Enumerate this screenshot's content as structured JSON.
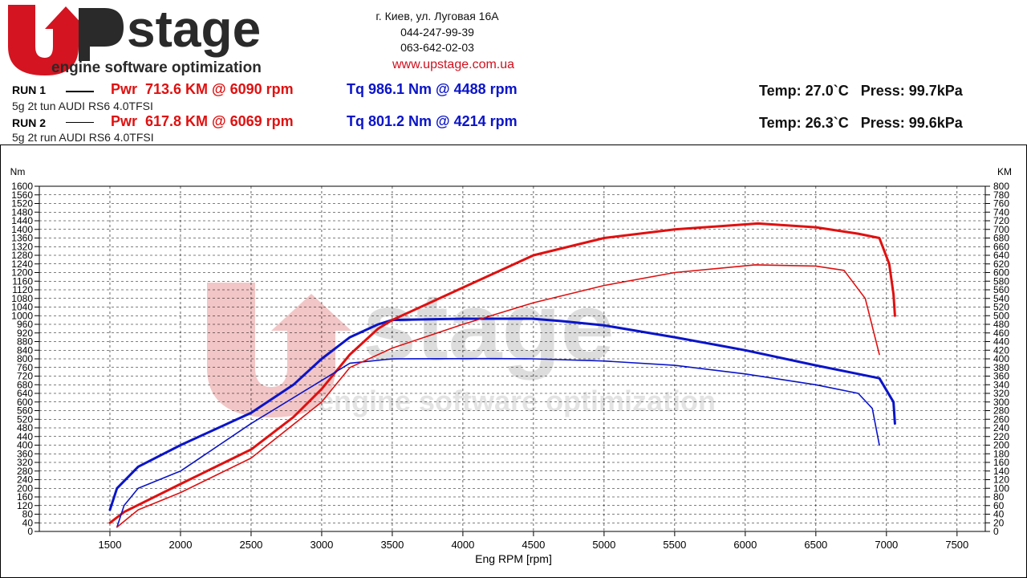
{
  "header": {
    "logo_text": "UPstage",
    "logo_tagline": "engine software optimization",
    "address": "г. Киев, ул. Луговая 16А",
    "phone1": "044-247-99-39",
    "phone2": "063-642-02-03",
    "website": "www.upstage.com.ua"
  },
  "runs": [
    {
      "label": "RUN 1",
      "pwr": "Pwr  713.6 KM @ 6090 rpm",
      "tq": "Tq 986.1 Nm @ 4488 rpm",
      "conditions": "Temp: 27.0`C   Press: 99.7kPa",
      "car": "5g 2t tun AUDI RS6 4.0TFSI"
    },
    {
      "label": "RUN 2",
      "pwr": "Pwr  617.8 KM @ 6069 rpm",
      "tq": "Tq 801.2 Nm @ 4214 rpm",
      "conditions": "Temp: 26.3`C   Press: 99.6kPa",
      "car": "5g 2t run AUDI RS6 4.0TFSI"
    }
  ],
  "colors": {
    "power": "#e01010",
    "torque": "#0a14c8",
    "watermark": "#f2c6c6"
  },
  "chart_data": {
    "type": "line",
    "xlabel": "Eng RPM [rpm]",
    "ylabel_left": "Nm",
    "ylabel_right": "KM",
    "xlim": [
      1000,
      7700
    ],
    "xticks": [
      1500,
      2000,
      2500,
      3000,
      3500,
      4000,
      4500,
      5000,
      5500,
      6000,
      6500,
      7000,
      7500
    ],
    "ylim_left": [
      0,
      1600
    ],
    "ylim_right": [
      0,
      800
    ],
    "ytick_step_left": 40,
    "ytick_step_right": 20,
    "grid": true,
    "series": [
      {
        "name": "RUN 1 Tq",
        "axis": "left",
        "color": "#0a14c8",
        "width": 3,
        "points": [
          [
            1500,
            100
          ],
          [
            1550,
            200
          ],
          [
            1700,
            300
          ],
          [
            2000,
            400
          ],
          [
            2500,
            550
          ],
          [
            2800,
            680
          ],
          [
            3000,
            800
          ],
          [
            3200,
            900
          ],
          [
            3400,
            960
          ],
          [
            3500,
            980
          ],
          [
            4000,
            986
          ],
          [
            4488,
            986
          ],
          [
            4700,
            975
          ],
          [
            5000,
            955
          ],
          [
            5500,
            900
          ],
          [
            6000,
            840
          ],
          [
            6500,
            770
          ],
          [
            6800,
            730
          ],
          [
            6950,
            710
          ],
          [
            7050,
            600
          ],
          [
            7060,
            500
          ]
        ]
      },
      {
        "name": "RUN 1 Pwr",
        "axis": "right",
        "color": "#e01010",
        "width": 3,
        "points": [
          [
            1500,
            20
          ],
          [
            1600,
            45
          ],
          [
            2000,
            110
          ],
          [
            2500,
            190
          ],
          [
            2800,
            265
          ],
          [
            3000,
            330
          ],
          [
            3200,
            410
          ],
          [
            3400,
            470
          ],
          [
            3500,
            490
          ],
          [
            4000,
            565
          ],
          [
            4500,
            640
          ],
          [
            5000,
            680
          ],
          [
            5500,
            700
          ],
          [
            6090,
            713.6
          ],
          [
            6500,
            705
          ],
          [
            6800,
            690
          ],
          [
            6950,
            680
          ],
          [
            7020,
            620
          ],
          [
            7050,
            550
          ],
          [
            7060,
            500
          ]
        ]
      },
      {
        "name": "RUN 2 Tq",
        "axis": "left",
        "color": "#0a14c8",
        "width": 1.6,
        "points": [
          [
            1550,
            20
          ],
          [
            1600,
            120
          ],
          [
            1700,
            200
          ],
          [
            2000,
            280
          ],
          [
            2500,
            500
          ],
          [
            3000,
            700
          ],
          [
            3200,
            780
          ],
          [
            3500,
            800
          ],
          [
            4214,
            801
          ],
          [
            4500,
            800
          ],
          [
            5000,
            790
          ],
          [
            5500,
            770
          ],
          [
            6000,
            730
          ],
          [
            6500,
            680
          ],
          [
            6800,
            640
          ],
          [
            6900,
            570
          ],
          [
            6950,
            400
          ]
        ]
      },
      {
        "name": "RUN 2 Pwr",
        "axis": "right",
        "color": "#e01010",
        "width": 1.6,
        "points": [
          [
            1550,
            10
          ],
          [
            1700,
            50
          ],
          [
            2000,
            90
          ],
          [
            2500,
            170
          ],
          [
            3000,
            300
          ],
          [
            3200,
            380
          ],
          [
            3500,
            425
          ],
          [
            4000,
            480
          ],
          [
            4500,
            530
          ],
          [
            5000,
            570
          ],
          [
            5500,
            600
          ],
          [
            6069,
            617.8
          ],
          [
            6500,
            615
          ],
          [
            6700,
            605
          ],
          [
            6850,
            540
          ],
          [
            6950,
            410
          ]
        ]
      }
    ]
  }
}
